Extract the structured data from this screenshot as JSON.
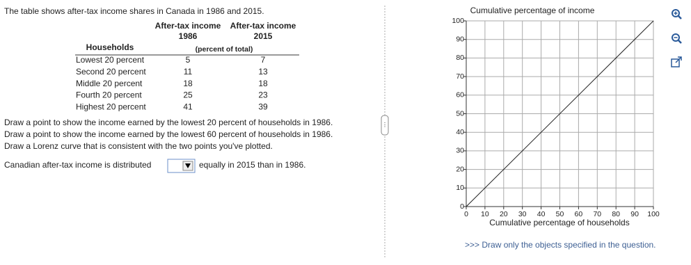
{
  "intro": "The table shows after-tax income shares in Canada in 1986 and 2015.",
  "table": {
    "row_header": "Households",
    "column_headers": [
      {
        "line1": "After-tax income",
        "line2": "1986"
      },
      {
        "line1": "After-tax income",
        "line2": "2015"
      }
    ],
    "unit_note": "(percent of total)",
    "rows": [
      [
        "Lowest 20 percent",
        5,
        7
      ],
      [
        "Second 20 percent",
        11,
        13
      ],
      [
        "Middle 20 percent",
        18,
        18
      ],
      [
        "Fourth 20 percent",
        25,
        23
      ],
      [
        "Highest 20 percent",
        41,
        39
      ]
    ]
  },
  "instructions": [
    "Draw a point to show the income earned by the lowest 20 percent of households in 1986.",
    "Draw a point to show the income earned by the lowest 60 percent of households in 1986.",
    "Draw a Lorenz curve that is consistent with the two points you've plotted."
  ],
  "question": {
    "before": "Canadian after-tax income is distributed",
    "after": "equally in 2015 than in 1986."
  },
  "graph": {
    "title": "Cumulative percentage of income",
    "x_label": "Cumulative percentage of households",
    "xlim": [
      0,
      100
    ],
    "ylim": [
      0,
      100
    ],
    "xticks": [
      0,
      10,
      20,
      30,
      40,
      50,
      60,
      70,
      80,
      90,
      100
    ],
    "yticks": [
      0,
      10,
      20,
      30,
      40,
      50,
      60,
      70,
      80,
      90,
      100
    ]
  },
  "note": ">>> Draw only the objects specified in the question."
}
